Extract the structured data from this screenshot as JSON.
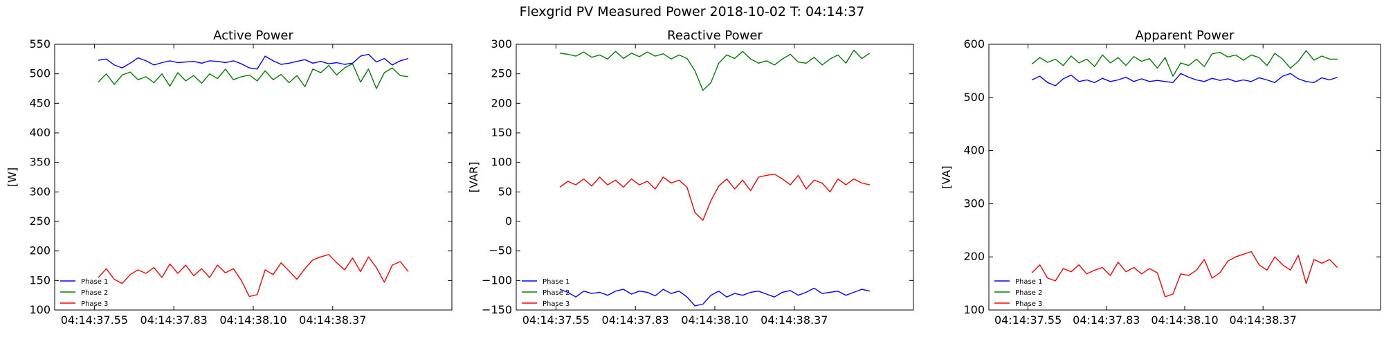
{
  "suptitle": "Flexgrid PV Measured Power 2018-10-02 T: 04:14:37",
  "chart_data": [
    {
      "type": "line",
      "title": "Active Power",
      "ylabel": "[W]",
      "xlabel": "",
      "ylim": [
        100,
        550
      ],
      "yticks": [
        100,
        150,
        200,
        250,
        300,
        350,
        400,
        450,
        500,
        550
      ],
      "xlim": [
        0,
        1
      ],
      "xtick_labels": [
        "04:14:37.55",
        "04:14:37.83",
        "04:14:38.10",
        "04:14:38.37"
      ],
      "xtick_pos": [
        0.1,
        0.3,
        0.5,
        0.7
      ],
      "legend": "lower-left",
      "grid": false,
      "series": [
        {
          "name": "Phase 1",
          "color": "#0000ff",
          "x": [
            0.11,
            0.13,
            0.15,
            0.17,
            0.19,
            0.21,
            0.23,
            0.25,
            0.27,
            0.29,
            0.31,
            0.33,
            0.35,
            0.37,
            0.39,
            0.41,
            0.43,
            0.45,
            0.47,
            0.49,
            0.51,
            0.53,
            0.55,
            0.57,
            0.59,
            0.61,
            0.63,
            0.65,
            0.67,
            0.69,
            0.71,
            0.73,
            0.75,
            0.77,
            0.79,
            0.81,
            0.83,
            0.85,
            0.87,
            0.89
          ],
          "y": [
            523,
            525,
            515,
            510,
            518,
            527,
            522,
            515,
            519,
            522,
            519,
            520,
            521,
            518,
            522,
            521,
            519,
            522,
            517,
            510,
            508,
            530,
            522,
            516,
            518,
            521,
            524,
            518,
            521,
            517,
            519,
            516,
            518,
            530,
            533,
            520,
            526,
            515,
            522,
            526
          ]
        },
        {
          "name": "Phase 2",
          "color": "#008000",
          "x": [
            0.11,
            0.13,
            0.15,
            0.17,
            0.19,
            0.21,
            0.23,
            0.25,
            0.27,
            0.29,
            0.31,
            0.33,
            0.35,
            0.37,
            0.39,
            0.41,
            0.43,
            0.45,
            0.47,
            0.49,
            0.51,
            0.53,
            0.55,
            0.57,
            0.59,
            0.61,
            0.63,
            0.65,
            0.67,
            0.69,
            0.71,
            0.73,
            0.75,
            0.77,
            0.79,
            0.81,
            0.83,
            0.85,
            0.87,
            0.89
          ],
          "y": [
            486,
            500,
            482,
            498,
            503,
            490,
            495,
            485,
            500,
            479,
            502,
            488,
            497,
            484,
            500,
            492,
            508,
            490,
            495,
            498,
            488,
            505,
            490,
            499,
            485,
            497,
            478,
            508,
            502,
            514,
            498,
            510,
            517,
            486,
            508,
            475,
            502,
            510,
            497,
            495
          ]
        },
        {
          "name": "Phase 3",
          "color": "#ff0000",
          "x": [
            0.11,
            0.13,
            0.15,
            0.17,
            0.19,
            0.21,
            0.23,
            0.25,
            0.27,
            0.29,
            0.31,
            0.33,
            0.35,
            0.37,
            0.39,
            0.41,
            0.43,
            0.45,
            0.47,
            0.49,
            0.51,
            0.53,
            0.55,
            0.57,
            0.59,
            0.61,
            0.63,
            0.65,
            0.67,
            0.69,
            0.71,
            0.73,
            0.75,
            0.77,
            0.79,
            0.81,
            0.83,
            0.85,
            0.87,
            0.89
          ],
          "y": [
            155,
            170,
            152,
            145,
            160,
            168,
            162,
            172,
            155,
            178,
            162,
            176,
            158,
            170,
            155,
            176,
            163,
            170,
            150,
            123,
            126,
            168,
            160,
            180,
            166,
            152,
            170,
            185,
            190,
            194,
            180,
            168,
            188,
            165,
            190,
            172,
            147,
            176,
            182,
            165
          ]
        }
      ]
    },
    {
      "type": "line",
      "title": "Reactive Power",
      "ylabel": "[VAR]",
      "xlabel": "",
      "ylim": [
        -150,
        300
      ],
      "yticks": [
        -150,
        -100,
        -50,
        0,
        50,
        100,
        150,
        200,
        250,
        300
      ],
      "ytick_labels": [
        "−150",
        "−100",
        "−50",
        "0",
        "50",
        "100",
        "150",
        "200",
        "250",
        "300"
      ],
      "xlim": [
        0,
        1
      ],
      "xtick_labels": [
        "04:14:37.55",
        "04:14:37.83",
        "04:14:38.10",
        "04:14:38.37"
      ],
      "xtick_pos": [
        0.1,
        0.3,
        0.5,
        0.7
      ],
      "legend": "lower-left",
      "grid": false,
      "series": [
        {
          "name": "Phase 1",
          "color": "#0000ff",
          "x": [
            0.11,
            0.13,
            0.15,
            0.17,
            0.19,
            0.21,
            0.23,
            0.25,
            0.27,
            0.29,
            0.31,
            0.33,
            0.35,
            0.37,
            0.39,
            0.41,
            0.43,
            0.45,
            0.47,
            0.49,
            0.51,
            0.53,
            0.55,
            0.57,
            0.59,
            0.61,
            0.63,
            0.65,
            0.67,
            0.69,
            0.71,
            0.73,
            0.75,
            0.77,
            0.79,
            0.81,
            0.83,
            0.85,
            0.87,
            0.89
          ],
          "y": [
            -115,
            -120,
            -128,
            -118,
            -122,
            -120,
            -125,
            -118,
            -115,
            -123,
            -118,
            -120,
            -126,
            -115,
            -122,
            -118,
            -128,
            -143,
            -140,
            -125,
            -118,
            -128,
            -122,
            -125,
            -120,
            -118,
            -123,
            -128,
            -120,
            -117,
            -125,
            -120,
            -113,
            -122,
            -120,
            -118,
            -125,
            -120,
            -115,
            -118
          ]
        },
        {
          "name": "Phase 2",
          "color": "#008000",
          "x": [
            0.11,
            0.13,
            0.15,
            0.17,
            0.19,
            0.21,
            0.23,
            0.25,
            0.27,
            0.29,
            0.31,
            0.33,
            0.35,
            0.37,
            0.39,
            0.41,
            0.43,
            0.45,
            0.47,
            0.49,
            0.51,
            0.53,
            0.55,
            0.57,
            0.59,
            0.61,
            0.63,
            0.65,
            0.67,
            0.69,
            0.71,
            0.73,
            0.75,
            0.77,
            0.79,
            0.81,
            0.83,
            0.85,
            0.87,
            0.89
          ],
          "y": [
            285,
            283,
            280,
            287,
            278,
            282,
            275,
            288,
            276,
            285,
            279,
            287,
            280,
            284,
            275,
            282,
            276,
            255,
            222,
            235,
            268,
            282,
            276,
            288,
            275,
            268,
            272,
            265,
            275,
            283,
            270,
            268,
            278,
            265,
            275,
            282,
            268,
            290,
            276,
            285
          ]
        },
        {
          "name": "Phase 3",
          "color": "#ff0000",
          "x": [
            0.11,
            0.13,
            0.15,
            0.17,
            0.19,
            0.21,
            0.23,
            0.25,
            0.27,
            0.29,
            0.31,
            0.33,
            0.35,
            0.37,
            0.39,
            0.41,
            0.43,
            0.45,
            0.47,
            0.49,
            0.51,
            0.53,
            0.55,
            0.57,
            0.59,
            0.61,
            0.63,
            0.65,
            0.67,
            0.69,
            0.71,
            0.73,
            0.75,
            0.77,
            0.79,
            0.81,
            0.83,
            0.85,
            0.87,
            0.89
          ],
          "y": [
            58,
            68,
            62,
            72,
            60,
            75,
            62,
            70,
            58,
            72,
            62,
            68,
            55,
            75,
            65,
            70,
            58,
            15,
            2,
            35,
            60,
            72,
            55,
            70,
            52,
            75,
            78,
            80,
            72,
            62,
            78,
            55,
            70,
            65,
            50,
            72,
            62,
            72,
            65,
            62
          ]
        }
      ]
    },
    {
      "type": "line",
      "title": "Apparent Power",
      "ylabel": "[VA]",
      "xlabel": "",
      "ylim": [
        100,
        600
      ],
      "yticks": [
        100,
        200,
        300,
        400,
        500,
        600
      ],
      "xlim": [
        0,
        1
      ],
      "xtick_labels": [
        "04:14:37.55",
        "04:14:37.83",
        "04:14:38.10",
        "04:14:38.37"
      ],
      "xtick_pos": [
        0.1,
        0.3,
        0.5,
        0.7
      ],
      "legend": "lower-left",
      "grid": false,
      "series": [
        {
          "name": "Phase 1",
          "color": "#0000ff",
          "x": [
            0.11,
            0.13,
            0.15,
            0.17,
            0.19,
            0.21,
            0.23,
            0.25,
            0.27,
            0.29,
            0.31,
            0.33,
            0.35,
            0.37,
            0.39,
            0.41,
            0.43,
            0.45,
            0.47,
            0.49,
            0.51,
            0.53,
            0.55,
            0.57,
            0.59,
            0.61,
            0.63,
            0.65,
            0.67,
            0.69,
            0.71,
            0.73,
            0.75,
            0.77,
            0.79,
            0.81,
            0.83,
            0.85,
            0.87,
            0.89
          ],
          "y": [
            533,
            540,
            528,
            522,
            535,
            542,
            530,
            533,
            528,
            536,
            530,
            533,
            538,
            530,
            535,
            530,
            532,
            530,
            528,
            545,
            538,
            533,
            530,
            536,
            532,
            535,
            530,
            533,
            530,
            537,
            533,
            528,
            540,
            545,
            535,
            530,
            528,
            537,
            533,
            538
          ]
        },
        {
          "name": "Phase 2",
          "color": "#008000",
          "x": [
            0.11,
            0.13,
            0.15,
            0.17,
            0.19,
            0.21,
            0.23,
            0.25,
            0.27,
            0.29,
            0.31,
            0.33,
            0.35,
            0.37,
            0.39,
            0.41,
            0.43,
            0.45,
            0.47,
            0.49,
            0.51,
            0.53,
            0.55,
            0.57,
            0.59,
            0.61,
            0.63,
            0.65,
            0.67,
            0.69,
            0.71,
            0.73,
            0.75,
            0.77,
            0.79,
            0.81,
            0.83,
            0.85,
            0.87,
            0.89
          ],
          "y": [
            563,
            575,
            566,
            572,
            560,
            578,
            565,
            572,
            558,
            580,
            565,
            575,
            560,
            577,
            568,
            573,
            555,
            575,
            540,
            565,
            560,
            572,
            558,
            582,
            585,
            576,
            580,
            570,
            580,
            575,
            560,
            583,
            572,
            555,
            568,
            588,
            570,
            578,
            572,
            572
          ]
        },
        {
          "name": "Phase 3",
          "color": "#ff0000",
          "x": [
            0.11,
            0.13,
            0.15,
            0.17,
            0.19,
            0.21,
            0.23,
            0.25,
            0.27,
            0.29,
            0.31,
            0.33,
            0.35,
            0.37,
            0.39,
            0.41,
            0.43,
            0.45,
            0.47,
            0.49,
            0.51,
            0.53,
            0.55,
            0.57,
            0.59,
            0.61,
            0.63,
            0.65,
            0.67,
            0.69,
            0.71,
            0.73,
            0.75,
            0.77,
            0.79,
            0.81,
            0.83,
            0.85,
            0.87,
            0.89
          ],
          "y": [
            170,
            185,
            160,
            155,
            178,
            172,
            185,
            168,
            175,
            180,
            165,
            190,
            172,
            180,
            168,
            178,
            170,
            125,
            130,
            168,
            165,
            175,
            195,
            160,
            170,
            192,
            200,
            205,
            210,
            185,
            175,
            200,
            185,
            175,
            203,
            150,
            195,
            188,
            195,
            180
          ]
        }
      ]
    }
  ]
}
